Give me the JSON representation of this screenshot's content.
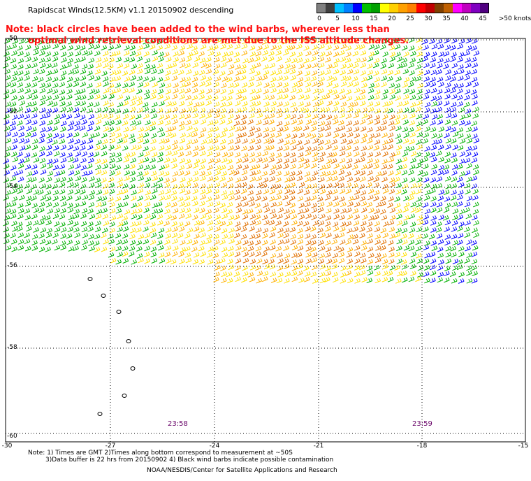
{
  "header": {
    "title": "Rapidscat Winds(12.5KM) v1.1 20150902 descending",
    "note_line1": "Note: black circles have been added to the wind barbs, wherever less than",
    "note_line2": "optimal wind retrieval conditions are met due to the ISS altitude changes."
  },
  "legend": {
    "unit_label": ">50 knots",
    "ticks": [
      "0",
      "5",
      "10",
      "15",
      "20",
      "25",
      "30",
      "35",
      "40",
      "45"
    ],
    "colors": [
      "#808080",
      "#404040",
      "#00c0ff",
      "#0080ff",
      "#0000ff",
      "#00c000",
      "#00a000",
      "#ffff00",
      "#ffd000",
      "#ffa000",
      "#ff8000",
      "#ff0000",
      "#c00000",
      "#804000",
      "#c06000",
      "#ff00ff",
      "#c000c0",
      "#8000c0",
      "#500080"
    ]
  },
  "axes": {
    "lat_labels": [
      "-50",
      "-52",
      "-54",
      "-56",
      "-58",
      "-60"
    ],
    "lon_labels": [
      "-30",
      "-27",
      "-24",
      "-21",
      "-18",
      "-15"
    ]
  },
  "time_labels": [
    "23:58",
    "23:59"
  ],
  "footer": {
    "line1": "Note: 1) Times are GMT 2)Times along bottom correspond to measurement at ~50S",
    "line2": "3)Data buffer is 22 hrs from 20150902 4) Black wind barbs indicate possible contamination",
    "credit": "NOAA/NESDIS/Center for Satellite Applications and Research"
  }
}
